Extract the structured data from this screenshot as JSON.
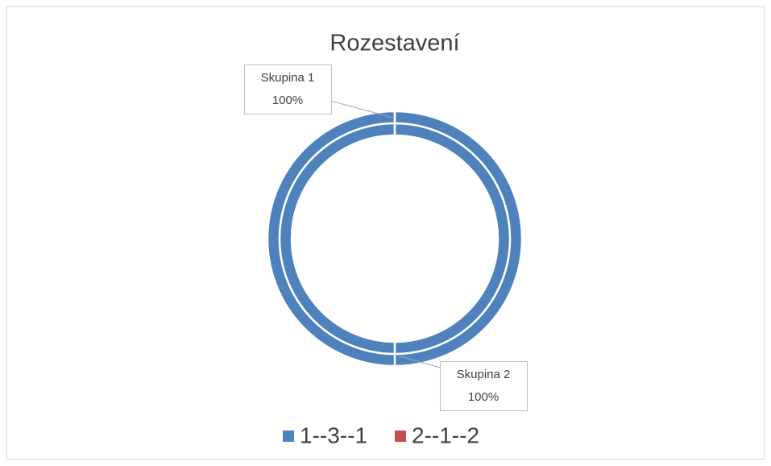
{
  "chart_data": {
    "type": "doughnut",
    "title": "Rozestavení",
    "categories": [
      "1--3--1",
      "2--1--2"
    ],
    "colors": [
      "#4f81bd",
      "#c0504d"
    ],
    "series": [
      {
        "name": "Skupina 1",
        "values": [
          100,
          0
        ],
        "value_labels": [
          "100%",
          null
        ]
      },
      {
        "name": "Skupina 2",
        "values": [
          100,
          0
        ],
        "value_labels": [
          "100%",
          null
        ]
      }
    ],
    "legend": "bottom"
  }
}
